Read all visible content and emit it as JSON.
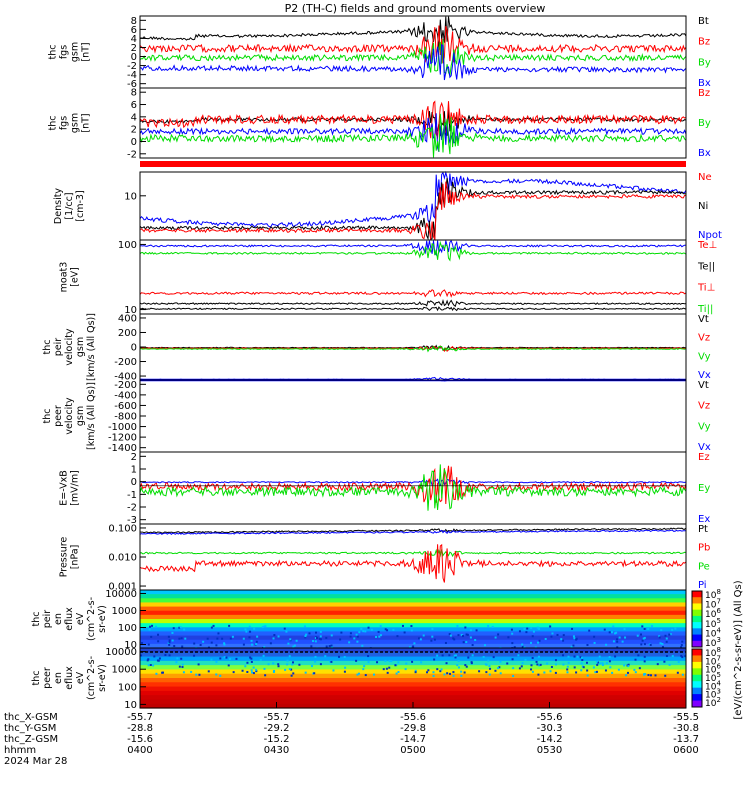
{
  "title": "P2 (TH-C) fields and ground moments overview",
  "colors": {
    "black": "#000000",
    "red": "#ff0000",
    "green": "#00dd00",
    "blue": "#0000ff"
  },
  "chart_data": [
    {
      "type": "line",
      "panel": "fgs-gsm",
      "ylabel": [
        "thc",
        "fgs",
        "gsm",
        "[nT]"
      ],
      "yticks": [
        "8",
        "6",
        "4",
        "2",
        "0",
        "-2",
        "-4",
        "-6"
      ],
      "legend": [
        {
          "name": "Bt",
          "color": "black"
        },
        {
          "name": "Bz",
          "color": "red"
        },
        {
          "name": "By",
          "color": "green"
        },
        {
          "name": "Bx",
          "color": "blue"
        }
      ]
    },
    {
      "type": "line",
      "panel": "fgs-gsm-2",
      "ylabel": [
        "thc",
        "fgs",
        "gsm",
        "[nT]"
      ],
      "yticks": [
        "8",
        "6",
        "4",
        "2",
        "0",
        "-2"
      ],
      "legend": [
        {
          "name": "Bz",
          "color": "red"
        },
        {
          "name": "By",
          "color": "green"
        },
        {
          "name": "Bx",
          "color": "blue"
        }
      ]
    },
    {
      "type": "line",
      "panel": "density",
      "ylabel": [
        "Density",
        "[1/cc]",
        "[cm-3]"
      ],
      "yticks": [
        "10"
      ],
      "legend": [
        {
          "name": "Ne",
          "color": "red"
        },
        {
          "name": "Ni",
          "color": "black"
        },
        {
          "name": "Npot",
          "color": "blue"
        }
      ]
    },
    {
      "type": "line",
      "panel": "temperature",
      "ylabel": [
        "moat3",
        "[eV]"
      ],
      "yticks": [
        "100",
        "10"
      ],
      "legend": [
        {
          "name": "Te⊥",
          "color": "red"
        },
        {
          "name": "Te||",
          "color": "black"
        },
        {
          "name": "Ti⊥",
          "color": "red"
        },
        {
          "name": "Ti||",
          "color": "green"
        }
      ]
    },
    {
      "type": "line",
      "panel": "peir-velocity",
      "ylabel": [
        "thc",
        "peir",
        "velocity",
        "gsm",
        "[km/s (All Qs)]"
      ],
      "yticks": [
        "400",
        "200",
        "0",
        "-200",
        "-400"
      ],
      "legend": [
        {
          "name": "Vt",
          "color": "black"
        },
        {
          "name": "Vz",
          "color": "red"
        },
        {
          "name": "Vy",
          "color": "green"
        },
        {
          "name": "Vx",
          "color": "blue"
        }
      ]
    },
    {
      "type": "line",
      "panel": "peer-velocity",
      "ylabel": [
        "thc",
        "peer",
        "velocity",
        "gsm",
        "[km/s (All Qs)]"
      ],
      "yticks": [
        "-200",
        "-400",
        "-600",
        "-800",
        "-1000",
        "-1200",
        "-1400"
      ],
      "legend": [
        {
          "name": "Vt",
          "color": "black"
        },
        {
          "name": "Vz",
          "color": "red"
        },
        {
          "name": "Vy",
          "color": "green"
        },
        {
          "name": "Vx",
          "color": "blue"
        }
      ]
    },
    {
      "type": "line",
      "panel": "efield",
      "ylabel": [
        "E=-VxB",
        "[mV/m]"
      ],
      "yticks": [
        "2",
        "1",
        "0",
        "-1",
        "-2",
        "-3"
      ],
      "legend": [
        {
          "name": "Ez",
          "color": "red"
        },
        {
          "name": "Ey",
          "color": "green"
        },
        {
          "name": "Ex",
          "color": "blue"
        }
      ]
    },
    {
      "type": "line",
      "panel": "pressure",
      "ylabel": [
        "Pressure",
        "[nPa]"
      ],
      "yticks": [
        "0.100",
        "0.010",
        "0.001"
      ],
      "legend": [
        {
          "name": "Pt",
          "color": "black"
        },
        {
          "name": "Pb",
          "color": "red"
        },
        {
          "name": "Pe",
          "color": "green"
        },
        {
          "name": "Pi",
          "color": "blue"
        }
      ]
    },
    {
      "type": "heatmap",
      "panel": "peir-spectrogram",
      "ylabel": [
        "thc",
        "peir",
        "en",
        "eflux",
        "eV",
        "(cm^2-s-",
        "sr-eV)"
      ],
      "yticks": [
        "10000",
        "1000",
        "100",
        "10"
      ],
      "colorbar_ticks": [
        "10^8",
        "10^7",
        "10^6",
        "10^5",
        "10^4",
        "10^3"
      ]
    },
    {
      "type": "heatmap",
      "panel": "peer-spectrogram",
      "ylabel": [
        "thc",
        "peer",
        "en",
        "eflux",
        "eV",
        "(cm^2-s-",
        "sr-eV)"
      ],
      "yticks": [
        "10000",
        "1000",
        "100",
        "10"
      ],
      "colorbar_ticks": [
        "10^8",
        "10^7",
        "10^6",
        "10^5",
        "10^4",
        "10^3",
        "10^2"
      ]
    }
  ],
  "colorbar_label": "[eV/(cm^2-s-sr-eV)] (All Qs)",
  "xaxis": {
    "rows": [
      {
        "label": "thc_X-GSM",
        "values": [
          "-55.7",
          "-55.7",
          "-55.6",
          "-55.6",
          "-55.5"
        ]
      },
      {
        "label": "thc_Y-GSM",
        "values": [
          "-28.8",
          "-29.2",
          "-29.8",
          "-30.3",
          "-30.8"
        ]
      },
      {
        "label": "thc_Z-GSM",
        "values": [
          "-15.6",
          "-15.2",
          "-14.7",
          "-14.2",
          "-13.7"
        ]
      },
      {
        "label": "hhmm",
        "values": [
          "0400",
          "0430",
          "0500",
          "0530",
          "0600"
        ]
      }
    ],
    "date": "2024 Mar 28"
  }
}
